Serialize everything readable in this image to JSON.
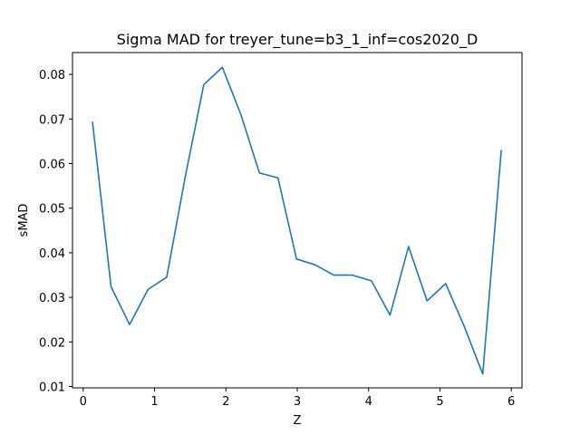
{
  "chart_data": {
    "type": "line",
    "title": "Sigma MAD for treyer_tune=b3_1_inf=cos2020_D",
    "xlabel": "Z",
    "ylabel": "sMAD",
    "xlim": [
      -0.15,
      6.15
    ],
    "ylim": [
      0.0097,
      0.0849
    ],
    "xticks": [
      "0",
      "1",
      "2",
      "3",
      "4",
      "5",
      "6"
    ],
    "yticks": [
      "0.01",
      "0.02",
      "0.03",
      "0.04",
      "0.05",
      "0.06",
      "0.07",
      "0.08"
    ],
    "grid": false,
    "series": [
      {
        "color": "#1f77b4",
        "x": [
          0.13,
          0.39,
          0.65,
          0.91,
          1.17,
          1.43,
          1.69,
          1.95,
          2.21,
          2.47,
          2.73,
          2.99,
          3.25,
          3.51,
          3.77,
          4.04,
          4.3,
          4.56,
          4.82,
          5.08,
          5.34,
          5.6,
          5.86
        ],
        "values": [
          0.0694,
          0.0324,
          0.0239,
          0.0318,
          0.0345,
          0.057,
          0.0777,
          0.0816,
          0.071,
          0.0579,
          0.0568,
          0.0386,
          0.0373,
          0.035,
          0.035,
          0.0337,
          0.026,
          0.0414,
          0.0292,
          0.0331,
          0.0235,
          0.0128,
          0.0631
        ]
      }
    ]
  }
}
